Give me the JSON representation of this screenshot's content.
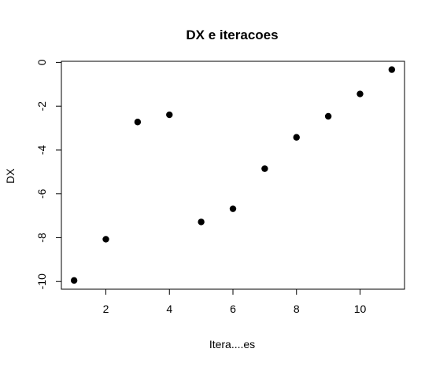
{
  "chart_data": {
    "type": "scatter",
    "title": "DX e iteracoes",
    "xlabel": "Itera....es",
    "ylabel": "DX",
    "x": [
      1,
      2,
      3,
      4,
      5,
      6,
      7,
      8,
      9,
      10,
      11
    ],
    "y": [
      -9.95,
      -8.07,
      -2.72,
      -2.39,
      -7.28,
      -6.68,
      -4.85,
      -3.42,
      -2.46,
      -1.44,
      -0.33
    ],
    "xlim": [
      0.6,
      11.4
    ],
    "ylim": [
      -10.35,
      0.05
    ],
    "xticks": [
      2,
      4,
      6,
      8,
      10
    ],
    "xtick_labels": [
      "2",
      "4",
      "6",
      "8",
      "10"
    ],
    "yticks": [
      0,
      -2,
      -4,
      -6,
      -8,
      -10
    ],
    "ytick_labels": [
      "0",
      "-2",
      "-4",
      "-6",
      "-8",
      "-10"
    ],
    "grid": false,
    "legend": false,
    "marker_color": "#000000"
  }
}
